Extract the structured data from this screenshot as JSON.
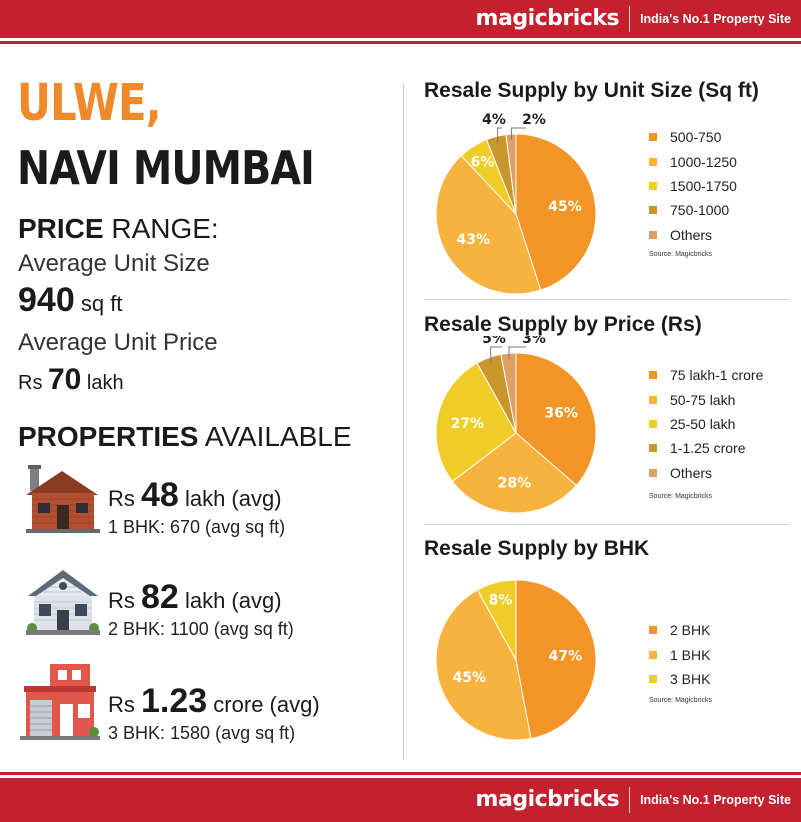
{
  "brand": {
    "logo": "magicbricks",
    "tagline": "India's No.1 Property Site"
  },
  "location": {
    "line1": "ULWE,",
    "line2": "NAVI MUMBAI"
  },
  "price_range": {
    "heading_bold": "PRICE",
    "heading_rest": " RANGE:",
    "avg_unit_size_label": "Average Unit Size",
    "avg_unit_size_value": "940",
    "avg_unit_size_unit": " sq ft",
    "avg_unit_price_label": "Average Unit Price",
    "avg_unit_price_prefix": "Rs ",
    "avg_unit_price_value": "70",
    "avg_unit_price_unit": " lakh"
  },
  "properties": {
    "heading_bold": "PROPERTIES",
    "heading_rest": " AVAILABLE",
    "items": [
      {
        "prefix": "Rs ",
        "value": "48",
        "unit": " lakh (avg)",
        "detail": "1 BHK: 670 (avg sq ft)",
        "icon": "brown-house-icon"
      },
      {
        "prefix": "Rs ",
        "value": "82",
        "unit": " lakh (avg)",
        "detail": "2 BHK: 1100 (avg sq ft)",
        "icon": "grey-house-icon"
      },
      {
        "prefix": "Rs ",
        "value": "1.23",
        "unit": " crore (avg)",
        "detail": "3 BHK: 1580 (avg sq ft)",
        "icon": "red-building-icon"
      }
    ]
  },
  "chart_data": [
    {
      "type": "pie",
      "title": "Resale Supply by Unit Size (Sq ft)",
      "categories": [
        "500-750",
        "1000-1250",
        "1500-1750",
        "750-1000",
        "Others"
      ],
      "values": [
        45,
        43,
        6,
        4,
        2
      ],
      "labels": [
        "45%",
        "43%",
        "6%",
        "4%",
        "2%"
      ],
      "colors": [
        "#f29426",
        "#f8b33e",
        "#f0cd26",
        "#c9962c",
        "#e0a063"
      ],
      "source": "Source: Magicbricks"
    },
    {
      "type": "pie",
      "title": "Resale Supply by Price (Rs)",
      "categories": [
        "75 lakh-1 crore",
        "50-75 lakh",
        "25-50 lakh",
        "1-1.25 crore",
        "Others"
      ],
      "values": [
        36,
        28,
        27,
        5,
        3
      ],
      "labels": [
        "36%",
        "28%",
        "27%",
        "5%",
        "3%"
      ],
      "colors": [
        "#f29426",
        "#f8b33e",
        "#f0cd26",
        "#c9962c",
        "#e0a063"
      ],
      "source": "Source: Magicbricks"
    },
    {
      "type": "pie",
      "title": "Resale Supply by BHK",
      "categories": [
        "2 BHK",
        "1 BHK",
        "3 BHK"
      ],
      "values": [
        47,
        45,
        8
      ],
      "labels": [
        "47%",
        "45%",
        "8%"
      ],
      "colors": [
        "#f29426",
        "#f8b33e",
        "#f0cd26"
      ],
      "source": "Source: Magicbricks"
    }
  ]
}
